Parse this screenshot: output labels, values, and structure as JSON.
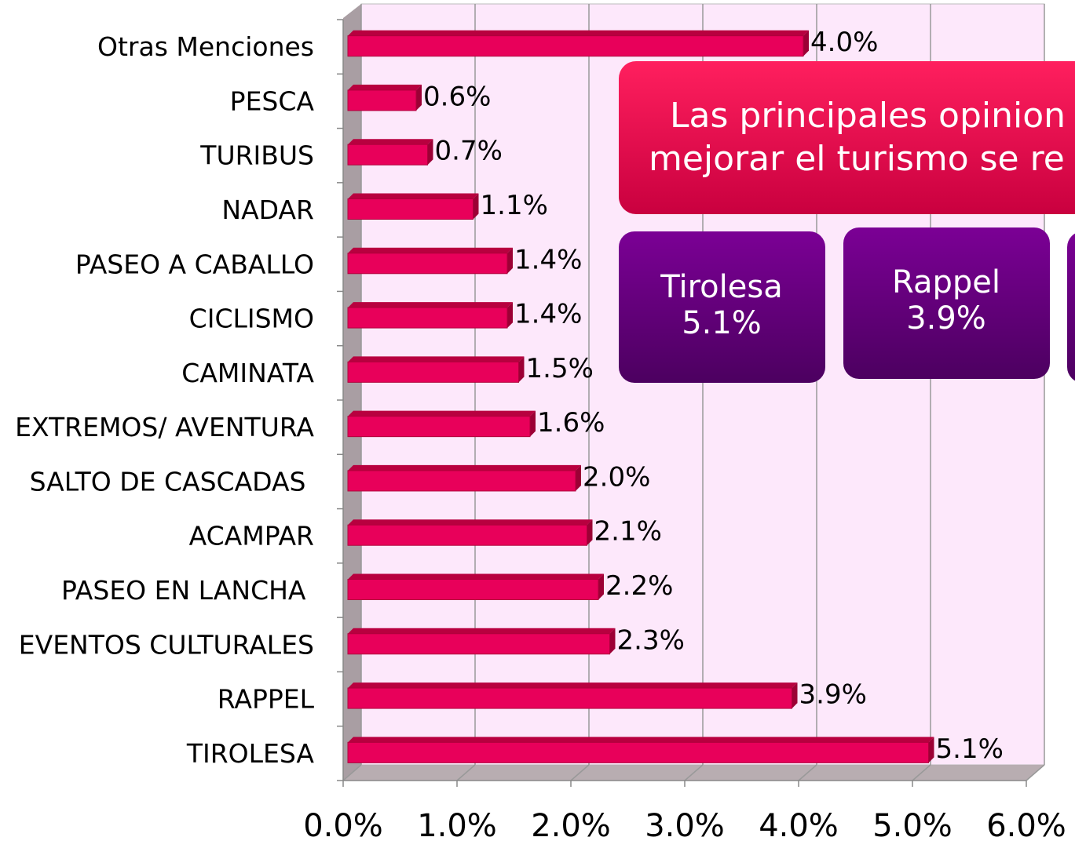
{
  "chart_data": {
    "type": "bar",
    "orientation": "horizontal",
    "categories": [
      "Otras Menciones",
      "PESCA",
      "TURIBUS",
      "NADAR",
      "PASEO A CABALLO",
      "CICLISMO",
      "CAMINATA",
      "EXTREMOS/ AVENTURA",
      "SALTO DE CASCADAS ",
      "ACAMPAR",
      "PASEO EN LANCHA ",
      "EVENTOS CULTURALES",
      "RAPPEL",
      "TIROLESA"
    ],
    "values": [
      4.0,
      0.6,
      0.7,
      1.1,
      1.4,
      1.4,
      1.5,
      1.6,
      2.0,
      2.1,
      2.2,
      2.3,
      3.9,
      5.1
    ],
    "value_labels": [
      "4.0%",
      "0.6%",
      "0.7%",
      "1.1%",
      "1.4%",
      "1.4%",
      "1.5%",
      "1.6%",
      "2.0%",
      "2.1%",
      "2.2%",
      "2.3%",
      "3.9%",
      "5.1%"
    ],
    "color": "#e8005a",
    "xlim": [
      0,
      6
    ],
    "xticks": [
      {
        "value": 0,
        "label": "0.0%"
      },
      {
        "value": 1,
        "label": "1.0%"
      },
      {
        "value": 2,
        "label": "2.0%"
      },
      {
        "value": 3,
        "label": "3.0%"
      },
      {
        "value": 4,
        "label": "4.0%"
      },
      {
        "value": 5,
        "label": "5.0%"
      },
      {
        "value": 6,
        "label": "6.0%"
      }
    ],
    "grid": true,
    "annotations": {
      "callout": [
        "Las principales opinion",
        "mejorar el turismo se re"
      ],
      "boxes": [
        [
          "Tirolesa",
          "5.1%"
        ],
        [
          "Rappel",
          "3.9%"
        ]
      ]
    }
  }
}
